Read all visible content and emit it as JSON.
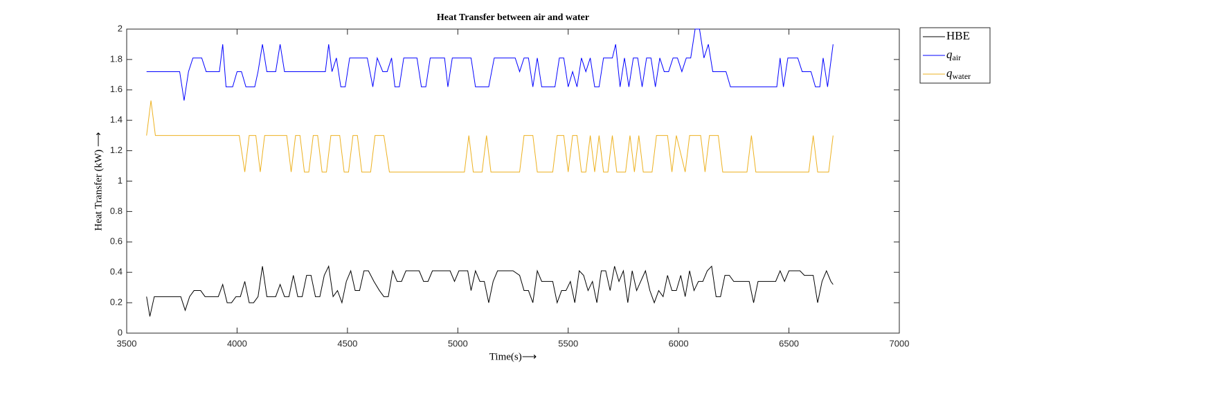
{
  "chart_data": {
    "type": "line",
    "title": "Heat Transfer between air and water",
    "xlabel": "Time(s)⟶",
    "ylabel": "Heat Transfer (kW) ⟶",
    "xlim": [
      3500,
      7000
    ],
    "xticks": [
      3500,
      4000,
      4500,
      5000,
      5500,
      6000,
      6500,
      7000
    ],
    "ylim": [
      0,
      2
    ],
    "yticks": [
      0,
      0.2,
      0.4,
      0.6,
      0.8,
      1,
      1.2,
      1.4,
      1.6,
      1.8,
      2
    ],
    "legend": "outside-upper-right",
    "series": [
      {
        "name": "HBE",
        "color": "#000000",
        "x": [
          3590,
          3605,
          3625,
          3745,
          3765,
          3785,
          3805,
          3835,
          3855,
          3915,
          3935,
          3955,
          3975,
          3995,
          4015,
          4035,
          4055,
          4075,
          4095,
          4115,
          4135,
          4175,
          4195,
          4215,
          4235,
          4255,
          4275,
          4295,
          4315,
          4335,
          4355,
          4375,
          4395,
          4415,
          4435,
          4455,
          4475,
          4495,
          4515,
          4535,
          4555,
          4575,
          4595,
          4620,
          4645,
          4665,
          4685,
          4705,
          4725,
          4745,
          4765,
          4825,
          4845,
          4865,
          4885,
          4965,
          4985,
          5005,
          5045,
          5060,
          5080,
          5100,
          5120,
          5140,
          5160,
          5180,
          5250,
          5280,
          5300,
          5320,
          5340,
          5360,
          5380,
          5430,
          5450,
          5470,
          5490,
          5510,
          5530,
          5550,
          5570,
          5590,
          5610,
          5630,
          5650,
          5670,
          5690,
          5710,
          5730,
          5750,
          5770,
          5790,
          5810,
          5850,
          5870,
          5890,
          5910,
          5930,
          5950,
          5970,
          5990,
          6010,
          6030,
          6050,
          6070,
          6090,
          6110,
          6130,
          6150,
          6170,
          6190,
          6210,
          6230,
          6250,
          6320,
          6340,
          6360,
          6440,
          6460,
          6480,
          6500,
          6550,
          6570,
          6610,
          6630,
          6650,
          6670,
          6690,
          6700
        ],
        "values": [
          0.24,
          0.11,
          0.24,
          0.24,
          0.15,
          0.24,
          0.28,
          0.28,
          0.24,
          0.24,
          0.32,
          0.2,
          0.2,
          0.24,
          0.24,
          0.34,
          0.2,
          0.2,
          0.24,
          0.44,
          0.24,
          0.24,
          0.32,
          0.24,
          0.24,
          0.38,
          0.24,
          0.24,
          0.38,
          0.38,
          0.24,
          0.24,
          0.38,
          0.44,
          0.24,
          0.28,
          0.2,
          0.34,
          0.41,
          0.28,
          0.28,
          0.41,
          0.41,
          0.34,
          0.28,
          0.24,
          0.24,
          0.41,
          0.34,
          0.34,
          0.41,
          0.41,
          0.34,
          0.34,
          0.41,
          0.41,
          0.34,
          0.41,
          0.41,
          0.28,
          0.41,
          0.34,
          0.34,
          0.2,
          0.34,
          0.41,
          0.41,
          0.38,
          0.28,
          0.28,
          0.2,
          0.41,
          0.34,
          0.34,
          0.2,
          0.28,
          0.28,
          0.34,
          0.2,
          0.41,
          0.38,
          0.28,
          0.34,
          0.2,
          0.41,
          0.41,
          0.28,
          0.44,
          0.34,
          0.41,
          0.2,
          0.41,
          0.28,
          0.41,
          0.28,
          0.2,
          0.28,
          0.24,
          0.38,
          0.28,
          0.28,
          0.38,
          0.24,
          0.41,
          0.28,
          0.34,
          0.34,
          0.41,
          0.44,
          0.24,
          0.24,
          0.38,
          0.38,
          0.34,
          0.34,
          0.2,
          0.34,
          0.34,
          0.41,
          0.34,
          0.41,
          0.41,
          0.38,
          0.38,
          0.2,
          0.34,
          0.41,
          0.34,
          0.32
        ]
      },
      {
        "name": "q",
        "subscript": "air",
        "color": "#0000ff",
        "x": [
          3590,
          3740,
          3760,
          3780,
          3800,
          3840,
          3860,
          3920,
          3935,
          3950,
          3980,
          4000,
          4020,
          4040,
          4080,
          4095,
          4115,
          4135,
          4175,
          4195,
          4215,
          4400,
          4415,
          4430,
          4450,
          4470,
          4490,
          4510,
          4590,
          4615,
          4635,
          4660,
          4680,
          4700,
          4715,
          4735,
          4755,
          4815,
          4835,
          4855,
          4875,
          4940,
          4955,
          4975,
          5060,
          5080,
          5140,
          5165,
          5260,
          5280,
          5300,
          5320,
          5340,
          5360,
          5380,
          5440,
          5460,
          5480,
          5500,
          5520,
          5540,
          5560,
          5580,
          5600,
          5620,
          5640,
          5660,
          5700,
          5715,
          5735,
          5755,
          5775,
          5795,
          5815,
          5835,
          5855,
          5875,
          5895,
          5915,
          5935,
          5955,
          5975,
          5995,
          6015,
          6035,
          6055,
          6075,
          6095,
          6115,
          6135,
          6155,
          6215,
          6235,
          6445,
          6460,
          6475,
          6495,
          6540,
          6560,
          6600,
          6620,
          6640,
          6655,
          6675,
          6700
        ],
        "values": [
          1.72,
          1.72,
          1.53,
          1.72,
          1.81,
          1.81,
          1.72,
          1.72,
          1.9,
          1.62,
          1.62,
          1.72,
          1.72,
          1.62,
          1.62,
          1.72,
          1.9,
          1.72,
          1.72,
          1.9,
          1.72,
          1.72,
          1.9,
          1.72,
          1.81,
          1.62,
          1.62,
          1.81,
          1.81,
          1.62,
          1.81,
          1.72,
          1.72,
          1.81,
          1.62,
          1.62,
          1.81,
          1.81,
          1.62,
          1.62,
          1.81,
          1.81,
          1.62,
          1.81,
          1.81,
          1.62,
          1.62,
          1.81,
          1.81,
          1.72,
          1.81,
          1.81,
          1.62,
          1.81,
          1.62,
          1.62,
          1.81,
          1.81,
          1.62,
          1.72,
          1.62,
          1.81,
          1.72,
          1.81,
          1.62,
          1.62,
          1.81,
          1.81,
          1.9,
          1.62,
          1.81,
          1.62,
          1.81,
          1.81,
          1.62,
          1.81,
          1.81,
          1.62,
          1.81,
          1.72,
          1.72,
          1.81,
          1.81,
          1.72,
          1.81,
          1.81,
          2.0,
          2.0,
          1.81,
          1.9,
          1.72,
          1.72,
          1.62,
          1.62,
          1.81,
          1.62,
          1.81,
          1.81,
          1.72,
          1.72,
          1.62,
          1.62,
          1.81,
          1.62,
          1.9
        ]
      },
      {
        "name": "q",
        "subscript": "water",
        "color": "#edb120",
        "x": [
          3590,
          3610,
          3630,
          4010,
          4035,
          4055,
          4085,
          4105,
          4125,
          4225,
          4245,
          4265,
          4285,
          4305,
          4325,
          4345,
          4365,
          4385,
          4405,
          4425,
          4465,
          4485,
          4505,
          4525,
          4545,
          4565,
          4605,
          4625,
          4665,
          4690,
          5030,
          5050,
          5070,
          5110,
          5130,
          5150,
          5280,
          5300,
          5340,
          5360,
          5430,
          5450,
          5480,
          5500,
          5520,
          5540,
          5560,
          5580,
          5600,
          5620,
          5640,
          5660,
          5680,
          5700,
          5720,
          5760,
          5780,
          5800,
          5820,
          5840,
          5880,
          5900,
          5950,
          5970,
          5990,
          6030,
          6050,
          6100,
          6120,
          6140,
          6180,
          6200,
          6310,
          6330,
          6350,
          6590,
          6610,
          6630,
          6680,
          6700
        ],
        "values": [
          1.3,
          1.53,
          1.3,
          1.3,
          1.06,
          1.3,
          1.3,
          1.06,
          1.3,
          1.3,
          1.06,
          1.3,
          1.3,
          1.06,
          1.06,
          1.3,
          1.3,
          1.06,
          1.06,
          1.3,
          1.3,
          1.06,
          1.06,
          1.3,
          1.3,
          1.06,
          1.06,
          1.3,
          1.3,
          1.06,
          1.06,
          1.3,
          1.06,
          1.06,
          1.3,
          1.06,
          1.06,
          1.3,
          1.3,
          1.06,
          1.06,
          1.3,
          1.3,
          1.06,
          1.3,
          1.3,
          1.06,
          1.06,
          1.3,
          1.06,
          1.3,
          1.06,
          1.06,
          1.3,
          1.06,
          1.06,
          1.3,
          1.06,
          1.3,
          1.06,
          1.06,
          1.3,
          1.3,
          1.06,
          1.3,
          1.06,
          1.3,
          1.3,
          1.06,
          1.3,
          1.3,
          1.06,
          1.06,
          1.3,
          1.06,
          1.06,
          1.3,
          1.06,
          1.06,
          1.3
        ]
      }
    ]
  }
}
